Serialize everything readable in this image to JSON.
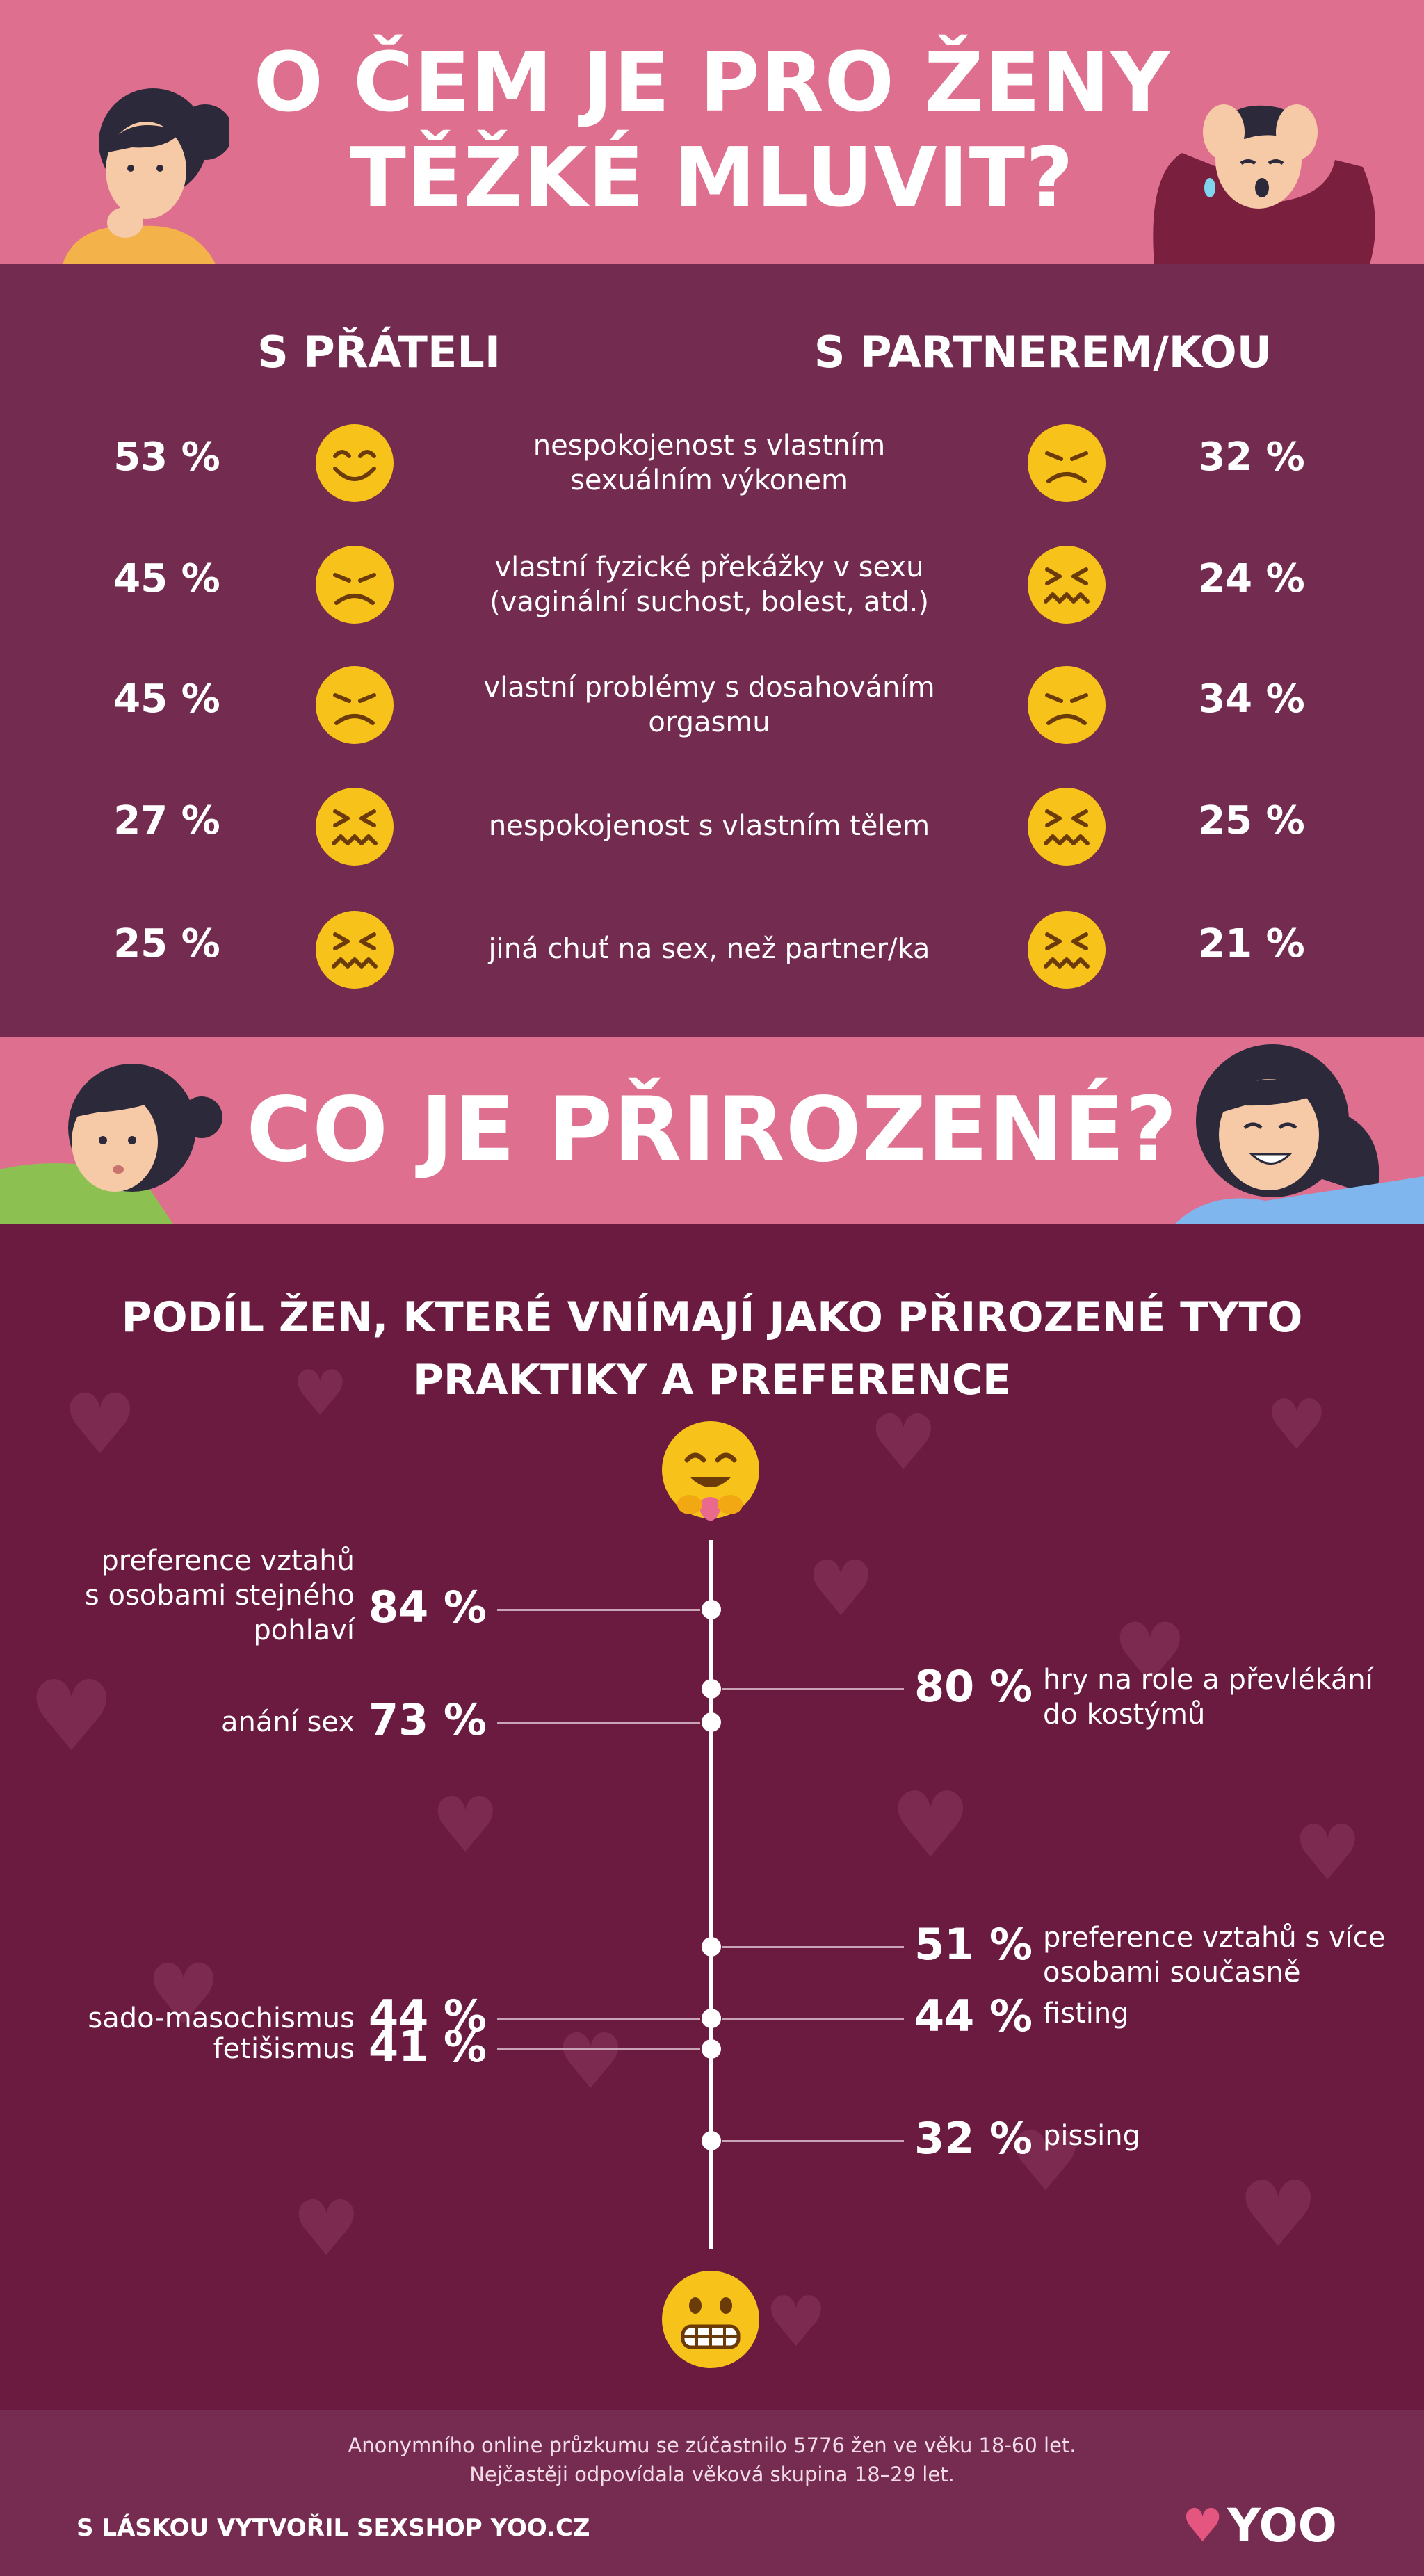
{
  "header1": {
    "title_line1": "O ČEM JE PRO ŽENY",
    "title_line2": "TĚŽKÉ MLUVIT?"
  },
  "section1": {
    "col_left": "S PŘÁTELI",
    "col_right": "S PARTNEREM/KOU",
    "rows": [
      {
        "left_pct": "53 %",
        "left_face": "smile",
        "desc": "nespokojenost s vlastním\nsexuálním výkonem",
        "right_face": "unhappy",
        "right_pct": "32 %"
      },
      {
        "left_pct": "45 %",
        "left_face": "unhappy",
        "desc": "vlastní fyzické překážky v sexu\n(vaginální suchost, bolest, atd.)",
        "right_face": "confounded",
        "right_pct": "24 %"
      },
      {
        "left_pct": "45 %",
        "left_face": "unhappy",
        "desc": "vlastní problémy s dosahováním\norgasmu",
        "right_face": "unhappy",
        "right_pct": "34 %"
      },
      {
        "left_pct": "27 %",
        "left_face": "confounded",
        "desc": "nespokojenost s vlastním tělem",
        "right_face": "confounded",
        "right_pct": "25 %"
      },
      {
        "left_pct": "25 %",
        "left_face": "confounded",
        "desc": "jiná chuť na sex, než partner/ka",
        "right_face": "confounded",
        "right_pct": "21 %"
      }
    ]
  },
  "header2": {
    "title": "CO JE PŘIROZENÉ?"
  },
  "section2": {
    "question_line1": "PODÍL ŽEN, KTERÉ VNÍMAJÍ JAKO PŘIROZENÉ TYTO",
    "question_line2": "PRAKTIKY A PREFERENCE",
    "top_icon": "hugging-face-icon",
    "bottom_icon": "grimacing-face-icon",
    "items": [
      {
        "side": "left",
        "value": 84,
        "value_label": "84 %",
        "label": "preference vztahů\ns osobami stejného\npohlaví"
      },
      {
        "side": "right",
        "value": 80,
        "value_label": "80 %",
        "label": "hry na role a převlékání\ndo kostýmů"
      },
      {
        "side": "left",
        "value": 73,
        "value_label": "73 %",
        "label": "anání sex"
      },
      {
        "side": "right",
        "value": 51,
        "value_label": "51 %",
        "label": "preference vztahů s více\nosobami současně"
      },
      {
        "side": "left",
        "value": 44,
        "value_label": "44 %",
        "label": "sado-masochismus"
      },
      {
        "side": "right",
        "value": 44,
        "value_label": "44 %",
        "label": "fisting"
      },
      {
        "side": "left",
        "value": 41,
        "value_label": "41 %",
        "label": "fetišismus"
      },
      {
        "side": "right",
        "value": 32,
        "value_label": "32 %",
        "label": "pissing"
      }
    ]
  },
  "footer": {
    "note_line1": "Anonymního online průzkumu se zúčastnilo 5776 žen ve věku 18-60 let.",
    "note_line2": "Nejčastěji odpovídala věková skupina 18–29 let.",
    "credit": "S LÁSKOU VYTVOŘIL SEXSHOP YOO.CZ",
    "logo_text": "YOO"
  },
  "colors": {
    "pink": "#de6f8f",
    "plum": "#732c4f",
    "wine": "#6b1a40",
    "emoji_yellow": "#f7c21a"
  }
}
